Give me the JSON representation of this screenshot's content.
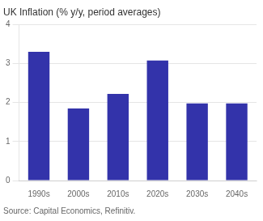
{
  "chart_data": {
    "type": "bar",
    "title": "UK Inflation (% y/y, period averages)",
    "categories": [
      "1990s",
      "2000s",
      "2010s",
      "2020s",
      "2030s",
      "2040s"
    ],
    "values": [
      3.3,
      1.85,
      2.22,
      3.08,
      1.98,
      1.98
    ],
    "color": "#3333aa",
    "ylim": [
      0,
      4
    ],
    "yticks": [
      0,
      1,
      2,
      3,
      4
    ],
    "grid": true,
    "annotations": [
      "Source: Capital Economics, Refinitiv."
    ]
  }
}
